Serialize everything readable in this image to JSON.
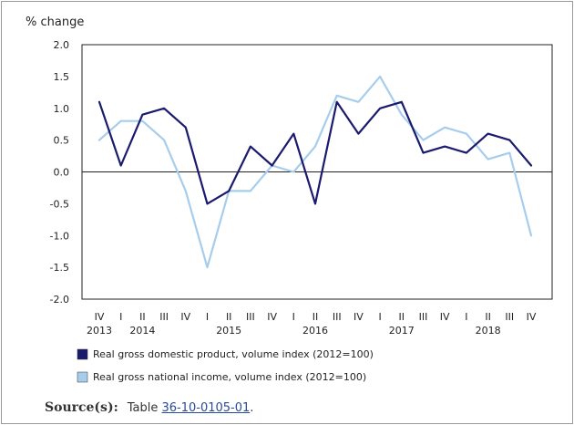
{
  "chart_data": {
    "type": "line",
    "ylabel": "% change",
    "ylim": [
      -2.0,
      2.0
    ],
    "yticks": [
      "2.0",
      "1.5",
      "1.0",
      "0.5",
      "0.0",
      "-0.5",
      "-1.0",
      "-1.5",
      "-2.0"
    ],
    "quarters": [
      "IV",
      "I",
      "II",
      "III",
      "IV",
      "I",
      "II",
      "III",
      "IV",
      "I",
      "II",
      "III",
      "IV",
      "I",
      "II",
      "III",
      "IV",
      "I",
      "II",
      "III",
      "IV"
    ],
    "years": [
      {
        "label": "2013",
        "index": 0
      },
      {
        "label": "2014",
        "index": 2
      },
      {
        "label": "2015",
        "index": 6
      },
      {
        "label": "2016",
        "index": 10
      },
      {
        "label": "2017",
        "index": 14
      },
      {
        "label": "2018",
        "index": 18
      }
    ],
    "series": [
      {
        "name": "Real gross domestic product, volume index (2012=100)",
        "color": "#1a1a6e",
        "values": [
          1.1,
          0.1,
          0.9,
          1.0,
          0.7,
          -0.5,
          -0.3,
          0.4,
          0.1,
          0.6,
          -0.5,
          1.1,
          0.6,
          1.0,
          1.1,
          0.3,
          0.4,
          0.3,
          0.6,
          0.5,
          0.1
        ]
      },
      {
        "name": "Real gross national income, volume index (2012=100)",
        "color": "#a6cdec",
        "values": [
          0.5,
          0.8,
          0.8,
          0.5,
          -0.3,
          -1.5,
          -0.3,
          -0.3,
          0.1,
          0.0,
          0.4,
          1.2,
          1.1,
          1.5,
          0.9,
          0.5,
          0.7,
          0.6,
          0.2,
          0.3,
          -1.0
        ]
      }
    ],
    "legend_position": "bottom"
  },
  "source": {
    "label": "Source(s):",
    "prefix": "Table",
    "link": "36-10-0105-01",
    "suffix": "."
  }
}
